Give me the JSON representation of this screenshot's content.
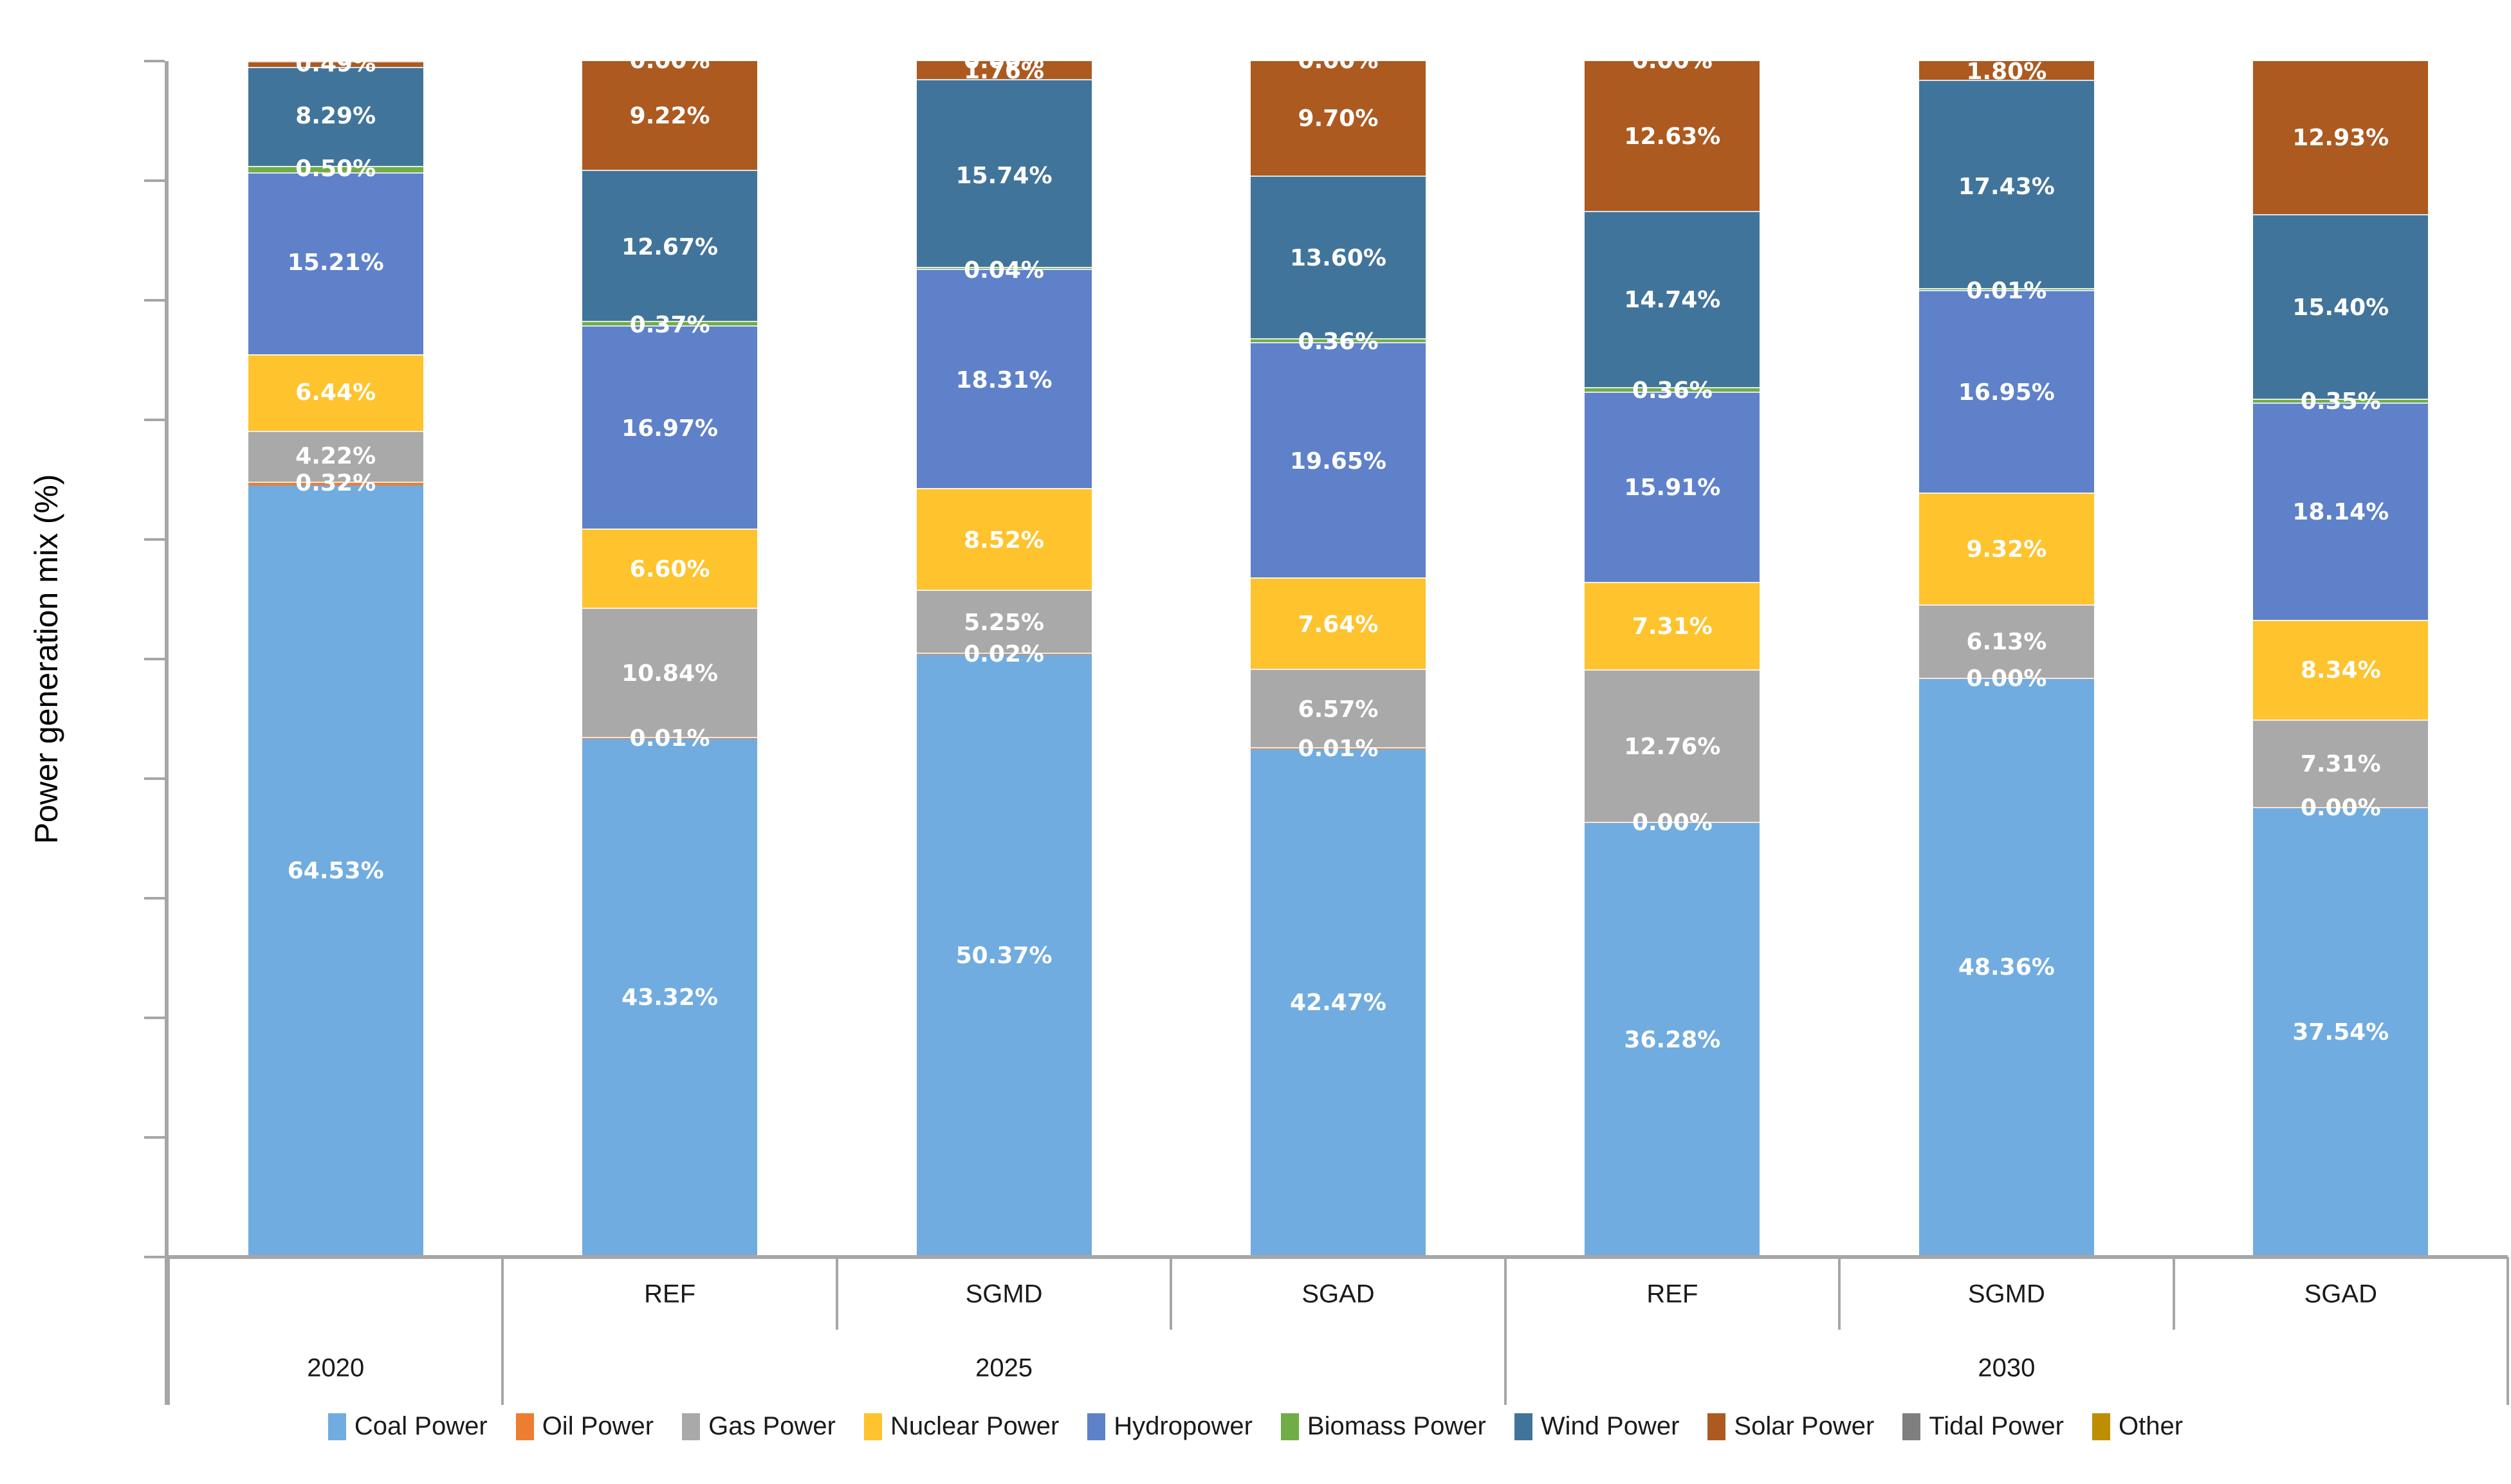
{
  "chart_data": {
    "type": "bar",
    "stacked": true,
    "title": "",
    "ylabel": "Power generation mix (%)",
    "ylim": [
      0,
      100
    ],
    "ytick_step": 10,
    "grid": false,
    "legend_position": "bottom",
    "series_order": [
      "Coal Power",
      "Oil Power",
      "Gas Power",
      "Nuclear Power",
      "Hydropower",
      "Biomass Power",
      "Wind Power",
      "Solar Power",
      "Tidal Power",
      "Other"
    ],
    "series_colors": {
      "Coal Power": "#70ACDF",
      "Oil Power": "#ED7D31",
      "Gas Power": "#A9A9A9",
      "Nuclear Power": "#FEC32D",
      "Hydropower": "#5E81C9",
      "Biomass Power": "#70AD47",
      "Wind Power": "#41749B",
      "Solar Power": "#AC5A20",
      "Tidal Power": "#7F7F7F",
      "Other": "#BC8E00"
    },
    "groups": [
      {
        "year": "2020",
        "scenario": "",
        "values": {
          "Coal Power": 64.53,
          "Oil Power": 0.32,
          "Gas Power": 4.22,
          "Nuclear Power": 6.44,
          "Hydropower": 15.21,
          "Biomass Power": 0.5,
          "Wind Power": 8.29,
          "Solar Power": 0.49,
          "Tidal Power": 0.0,
          "Other": 0.0
        },
        "labels": {
          "Coal Power": "64.53%",
          "Oil Power": "0.32%",
          "Gas Power": "4.22%",
          "Nuclear Power": "6.44%",
          "Hydropower": "15.21%",
          "Biomass Power": "0.50%",
          "Wind Power": "8.29%",
          "Solar Power": "0.49%"
        }
      },
      {
        "year": "2025",
        "scenario": "REF",
        "values": {
          "Coal Power": 43.32,
          "Oil Power": 0.01,
          "Gas Power": 10.84,
          "Nuclear Power": 6.6,
          "Hydropower": 16.97,
          "Biomass Power": 0.37,
          "Wind Power": 12.67,
          "Solar Power": 9.22,
          "Tidal Power": 0.0,
          "Other": 0.0
        },
        "labels": {
          "Coal Power": "43.32%",
          "Oil Power": "0.01%",
          "Gas Power": "10.84%",
          "Nuclear Power": "6.60%",
          "Hydropower": "16.97%",
          "Biomass Power": "0.37%",
          "Wind Power": "12.67%",
          "Solar Power": "9.22%",
          "Tidal Power": "0.00%"
        }
      },
      {
        "year": "2025",
        "scenario": "SGMD",
        "values": {
          "Coal Power": 50.37,
          "Oil Power": 0.02,
          "Gas Power": 5.25,
          "Nuclear Power": 8.52,
          "Hydropower": 18.31,
          "Biomass Power": 0.04,
          "Wind Power": 15.74,
          "Solar Power": 1.76,
          "Tidal Power": 0.0,
          "Other": 0.0
        },
        "labels": {
          "Coal Power": "50.37%",
          "Oil Power": "0.02%",
          "Gas Power": "5.25%",
          "Nuclear Power": "8.52%",
          "Hydropower": "18.31%",
          "Biomass Power": "0.04%",
          "Wind Power": "15.74%",
          "Solar Power": "1.76%",
          "Tidal Power": "0.00%"
        }
      },
      {
        "year": "2025",
        "scenario": "SGAD",
        "values": {
          "Coal Power": 42.47,
          "Oil Power": 0.01,
          "Gas Power": 6.57,
          "Nuclear Power": 7.64,
          "Hydropower": 19.65,
          "Biomass Power": 0.36,
          "Wind Power": 13.6,
          "Solar Power": 9.7,
          "Tidal Power": 0.0,
          "Other": 0.0
        },
        "labels": {
          "Coal Power": "42.47%",
          "Oil Power": "0.01%",
          "Gas Power": "6.57%",
          "Nuclear Power": "7.64%",
          "Hydropower": "19.65%",
          "Biomass Power": "0.36%",
          "Wind Power": "13.60%",
          "Solar Power": "9.70%",
          "Tidal Power": "0.00%"
        }
      },
      {
        "year": "2030",
        "scenario": "REF",
        "values": {
          "Coal Power": 36.28,
          "Oil Power": 0.0,
          "Gas Power": 12.76,
          "Nuclear Power": 7.31,
          "Hydropower": 15.91,
          "Biomass Power": 0.36,
          "Wind Power": 14.74,
          "Solar Power": 12.63,
          "Tidal Power": 0.0,
          "Other": 0.0
        },
        "labels": {
          "Coal Power": "36.28%",
          "Oil Power": "0.00%",
          "Gas Power": "12.76%",
          "Nuclear Power": "7.31%",
          "Hydropower": "15.91%",
          "Biomass Power": "0.36%",
          "Wind Power": "14.74%",
          "Solar Power": "12.63%",
          "Tidal Power": "0.00%"
        }
      },
      {
        "year": "2030",
        "scenario": "SGMD",
        "values": {
          "Coal Power": 48.36,
          "Oil Power": 0.0,
          "Gas Power": 6.13,
          "Nuclear Power": 9.32,
          "Hydropower": 16.95,
          "Biomass Power": 0.01,
          "Wind Power": 17.43,
          "Solar Power": 1.8,
          "Tidal Power": 0.0,
          "Other": 0.0
        },
        "labels": {
          "Coal Power": "48.36%",
          "Oil Power": "0.00%",
          "Gas Power": "6.13%",
          "Nuclear Power": "9.32%",
          "Hydropower": "16.95%",
          "Biomass Power": "0.01%",
          "Wind Power": "17.43%",
          "Solar Power": "1.80%"
        }
      },
      {
        "year": "2030",
        "scenario": "SGAD",
        "values": {
          "Coal Power": 37.54,
          "Oil Power": 0.0,
          "Gas Power": 7.31,
          "Nuclear Power": 8.34,
          "Hydropower": 18.14,
          "Biomass Power": 0.35,
          "Wind Power": 15.4,
          "Solar Power": 12.93,
          "Tidal Power": 0.0,
          "Other": 0.0
        },
        "labels": {
          "Coal Power": "37.54%",
          "Oil Power": "0.00%",
          "Gas Power": "7.31%",
          "Nuclear Power": "8.34%",
          "Hydropower": "18.14%",
          "Biomass Power": "0.35%",
          "Wind Power": "15.40%",
          "Solar Power": "12.93%"
        }
      }
    ],
    "year_axis": [
      {
        "label": "2020",
        "span": 1
      },
      {
        "label": "2025",
        "span": 3
      },
      {
        "label": "2030",
        "span": 3
      }
    ]
  },
  "legend": {
    "items": [
      {
        "label": "Coal Power",
        "color": "#70ACDF"
      },
      {
        "label": "Oil Power",
        "color": "#ED7D31"
      },
      {
        "label": "Gas Power",
        "color": "#A9A9A9"
      },
      {
        "label": "Nuclear Power",
        "color": "#FEC32D"
      },
      {
        "label": "Hydropower",
        "color": "#5E81C9"
      },
      {
        "label": "Biomass Power",
        "color": "#70AD47"
      },
      {
        "label": "Wind Power",
        "color": "#41749B"
      },
      {
        "label": "Solar Power",
        "color": "#AC5A20"
      },
      {
        "label": "Tidal Power",
        "color": "#7F7F7F"
      },
      {
        "label": "Other",
        "color": "#BC8E00"
      }
    ]
  }
}
